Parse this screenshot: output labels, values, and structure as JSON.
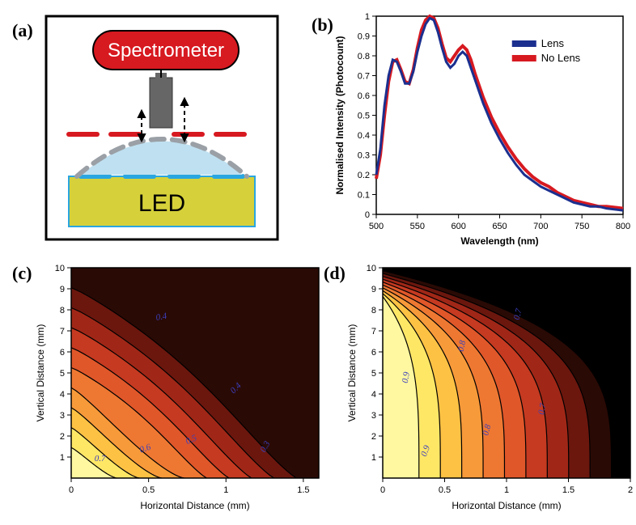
{
  "panels": {
    "a": {
      "label": "(a)"
    },
    "b": {
      "label": "(b)"
    },
    "c": {
      "label": "(c)"
    },
    "d": {
      "label": "(d)"
    }
  },
  "diagram_a": {
    "spectrometer_label": "Spectrometer",
    "led_label": "LED",
    "spectrometer_fill": "#d71920",
    "spectrometer_text": "#ffffff",
    "probe_fill": "#666666",
    "lens_fill": "#bfe0f0",
    "lens_outline": "#9aa0a6",
    "led_fill": "#d6d13a",
    "led_outline": "#2aa6e0",
    "dash_color_red": "#d71920",
    "dash_color_blue": "#2aa6e0",
    "border_color": "#000000",
    "bg": "#ffffff"
  },
  "chart_b": {
    "type": "line",
    "xlabel": "Wavelength (nm)",
    "ylabel": "Normalised Intensity (Photocount)",
    "xlim": [
      500,
      800
    ],
    "ylim": [
      0,
      1.0
    ],
    "xticks": [
      500,
      550,
      600,
      650,
      700,
      750,
      800
    ],
    "yticks": [
      0,
      0.1,
      0.2,
      0.3,
      0.4,
      0.5,
      0.6,
      0.7,
      0.8,
      0.9,
      1.0
    ],
    "legend": [
      {
        "label": "Lens",
        "color": "#1b2f8f"
      },
      {
        "label": "No Lens",
        "color": "#d71920"
      }
    ],
    "axis_fontsize": 11,
    "label_fontsize": 12,
    "series": {
      "lens": {
        "color": "#1b2f8f",
        "width": 3,
        "points": [
          [
            500,
            0.2
          ],
          [
            505,
            0.33
          ],
          [
            510,
            0.55
          ],
          [
            515,
            0.7
          ],
          [
            520,
            0.78
          ],
          [
            525,
            0.77
          ],
          [
            530,
            0.72
          ],
          [
            535,
            0.66
          ],
          [
            540,
            0.66
          ],
          [
            545,
            0.72
          ],
          [
            550,
            0.82
          ],
          [
            555,
            0.9
          ],
          [
            560,
            0.96
          ],
          [
            565,
            0.99
          ],
          [
            570,
            0.98
          ],
          [
            575,
            0.92
          ],
          [
            580,
            0.84
          ],
          [
            585,
            0.77
          ],
          [
            590,
            0.74
          ],
          [
            595,
            0.76
          ],
          [
            600,
            0.8
          ],
          [
            605,
            0.82
          ],
          [
            610,
            0.8
          ],
          [
            615,
            0.74
          ],
          [
            620,
            0.68
          ],
          [
            625,
            0.62
          ],
          [
            630,
            0.56
          ],
          [
            640,
            0.46
          ],
          [
            650,
            0.38
          ],
          [
            660,
            0.31
          ],
          [
            670,
            0.25
          ],
          [
            680,
            0.2
          ],
          [
            690,
            0.17
          ],
          [
            700,
            0.14
          ],
          [
            710,
            0.12
          ],
          [
            720,
            0.1
          ],
          [
            730,
            0.08
          ],
          [
            740,
            0.06
          ],
          [
            750,
            0.05
          ],
          [
            760,
            0.04
          ],
          [
            770,
            0.04
          ],
          [
            780,
            0.03
          ],
          [
            800,
            0.02
          ]
        ]
      },
      "nolens": {
        "color": "#d71920",
        "width": 4,
        "points": [
          [
            500,
            0.18
          ],
          [
            505,
            0.3
          ],
          [
            510,
            0.5
          ],
          [
            515,
            0.67
          ],
          [
            520,
            0.77
          ],
          [
            525,
            0.78
          ],
          [
            530,
            0.73
          ],
          [
            535,
            0.67
          ],
          [
            540,
            0.66
          ],
          [
            545,
            0.73
          ],
          [
            550,
            0.84
          ],
          [
            555,
            0.93
          ],
          [
            560,
            0.98
          ],
          [
            565,
            1.0
          ],
          [
            570,
            0.99
          ],
          [
            575,
            0.94
          ],
          [
            580,
            0.86
          ],
          [
            585,
            0.79
          ],
          [
            590,
            0.77
          ],
          [
            595,
            0.8
          ],
          [
            600,
            0.83
          ],
          [
            605,
            0.85
          ],
          [
            610,
            0.83
          ],
          [
            615,
            0.78
          ],
          [
            620,
            0.71
          ],
          [
            625,
            0.65
          ],
          [
            630,
            0.59
          ],
          [
            640,
            0.49
          ],
          [
            650,
            0.41
          ],
          [
            660,
            0.34
          ],
          [
            670,
            0.28
          ],
          [
            680,
            0.23
          ],
          [
            690,
            0.19
          ],
          [
            700,
            0.16
          ],
          [
            710,
            0.14
          ],
          [
            720,
            0.11
          ],
          [
            730,
            0.09
          ],
          [
            740,
            0.07
          ],
          [
            750,
            0.06
          ],
          [
            760,
            0.05
          ],
          [
            770,
            0.04
          ],
          [
            780,
            0.04
          ],
          [
            800,
            0.03
          ]
        ]
      }
    }
  },
  "heatmap_c": {
    "type": "contour-heatmap",
    "xlabel": "Horizontal Distance (mm)",
    "ylabel": "Vertical Distance (mm)",
    "xlim": [
      0,
      1.6
    ],
    "ylim": [
      0,
      10
    ],
    "xticks": [
      0,
      0.5,
      1.0,
      1.5
    ],
    "yticks": [
      1,
      2,
      3,
      4,
      5,
      6,
      7,
      8,
      9,
      10
    ],
    "colors": [
      "#fff8a0",
      "#ffe766",
      "#fdc244",
      "#f79a3a",
      "#ee7832",
      "#e0572a",
      "#c53a21",
      "#a02717",
      "#6b170e",
      "#2a0a05"
    ],
    "contour_labels": [
      "0.7",
      "0.6",
      "0.5",
      "0.4",
      "0.3"
    ],
    "contour_label_color": "#3b3fbd",
    "axis_fontsize": 11,
    "label_fontsize": 12
  },
  "heatmap_d": {
    "type": "contour-heatmap",
    "xlabel": "Horizontal Distance (mm)",
    "ylabel": "Vertical Distance (mm)",
    "xlim": [
      0,
      2.0
    ],
    "ylim": [
      0,
      10
    ],
    "xticks": [
      0,
      0.5,
      1.0,
      1.5,
      2.0
    ],
    "yticks": [
      1,
      2,
      3,
      4,
      5,
      6,
      7,
      8,
      9,
      10
    ],
    "colors": [
      "#fff8a0",
      "#ffe766",
      "#fdc244",
      "#f79a3a",
      "#ee7832",
      "#e0572a",
      "#c53a21",
      "#a02717",
      "#6b170e",
      "#2a0a05",
      "#000000"
    ],
    "contour_labels": [
      "0.9",
      "0.9",
      "0.8",
      "0.8",
      "0.7",
      "0.7"
    ],
    "contour_label_color": "#3b3fbd",
    "axis_fontsize": 11,
    "label_fontsize": 12
  },
  "layout": {
    "bg": "#ffffff",
    "label_font": "Times New Roman"
  }
}
